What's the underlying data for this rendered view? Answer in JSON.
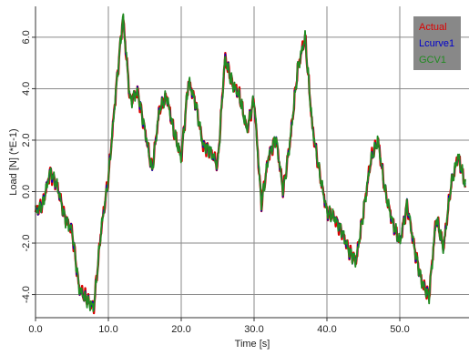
{
  "chart_data": {
    "type": "line",
    "title": "",
    "xlabel": "Time [s]",
    "ylabel": "Load [N] (*E-1)",
    "xlim": [
      0,
      59.5
    ],
    "ylim": [
      -4.9,
      7.2
    ],
    "xticks": [
      0,
      10,
      20,
      30,
      40,
      50
    ],
    "xtick_labels": [
      "0.0",
      "10.0",
      "20.0",
      "30.0",
      "40.0",
      "50.0"
    ],
    "yticks": [
      -4,
      -2,
      0,
      2,
      4,
      6
    ],
    "ytick_labels": [
      "-4.0",
      "-2.0",
      "0.0",
      "2.0",
      "4.0",
      "6.0"
    ],
    "grid": true,
    "legend": {
      "position": "top-right",
      "background": "#888888"
    },
    "series": [
      {
        "name": "Actual",
        "color": "#dd0000"
      },
      {
        "name": "Lcurve1",
        "color": "#0000cc"
      },
      {
        "name": "GCV1",
        "color": "#228b22"
      }
    ],
    "x": [
      0,
      1,
      2,
      3,
      4,
      5,
      6,
      7,
      8,
      9,
      10,
      11,
      12,
      13,
      14,
      15,
      16,
      17,
      18,
      19,
      20,
      21,
      22,
      23,
      24,
      25,
      26,
      27,
      28,
      29,
      30,
      31,
      32,
      33,
      34,
      35,
      36,
      37,
      38,
      39,
      40,
      41,
      42,
      43,
      44,
      45,
      46,
      47,
      48,
      49,
      50,
      51,
      52,
      53,
      54,
      55,
      56,
      57,
      58,
      59
    ],
    "y": [
      -0.8,
      -0.5,
      0.8,
      0.2,
      -1.0,
      -1.5,
      -3.8,
      -4.2,
      -4.5,
      -1.5,
      0.5,
      3.8,
      6.8,
      3.5,
      3.9,
      2.4,
      0.8,
      3.2,
      3.7,
      2.3,
      1.3,
      4.3,
      3.4,
      1.8,
      1.6,
      1.0,
      5.2,
      4.2,
      3.7,
      2.4,
      3.6,
      -0.5,
      1.4,
      2.1,
      0.0,
      2.1,
      4.8,
      6.0,
      2.5,
      0.7,
      -0.8,
      -1.0,
      -1.5,
      -2.3,
      -2.7,
      -0.8,
      1.2,
      2.0,
      0.0,
      -1.2,
      -2.0,
      -0.5,
      -2.2,
      -3.5,
      -4.1,
      -1.0,
      -2.2,
      0.2,
      1.4,
      0.2
    ]
  }
}
